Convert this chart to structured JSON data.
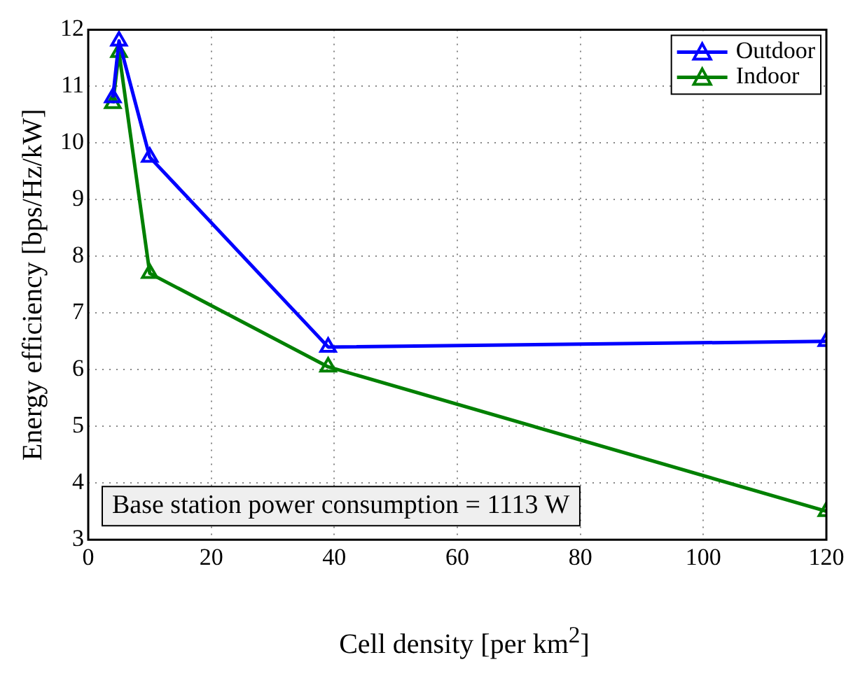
{
  "chart_data": {
    "type": "line",
    "xlabel": "Cell density [per km$^{2}$]",
    "ylabel": "Energy efficiency [bps/Hz/kW]",
    "x": [
      4,
      5,
      10,
      39,
      120
    ],
    "series": [
      {
        "name": "Outdoor",
        "color": "#0000ff",
        "values": [
          10.8,
          11.8,
          9.75,
          6.4,
          6.5
        ]
      },
      {
        "name": "Indoor",
        "color": "#008000",
        "values": [
          10.7,
          11.6,
          7.7,
          6.05,
          3.5
        ]
      }
    ],
    "xlim": [
      0,
      120
    ],
    "xticks": [
      0,
      20,
      40,
      60,
      80,
      100,
      120
    ],
    "ylim": [
      3,
      12
    ],
    "yticks": [
      3,
      4,
      5,
      6,
      7,
      8,
      9,
      10,
      11,
      12
    ],
    "grid": true,
    "legend": "top right",
    "marker": "triangle",
    "line_style": "solid",
    "annotations": [
      "Base station power consumption = 1113 W"
    ]
  }
}
